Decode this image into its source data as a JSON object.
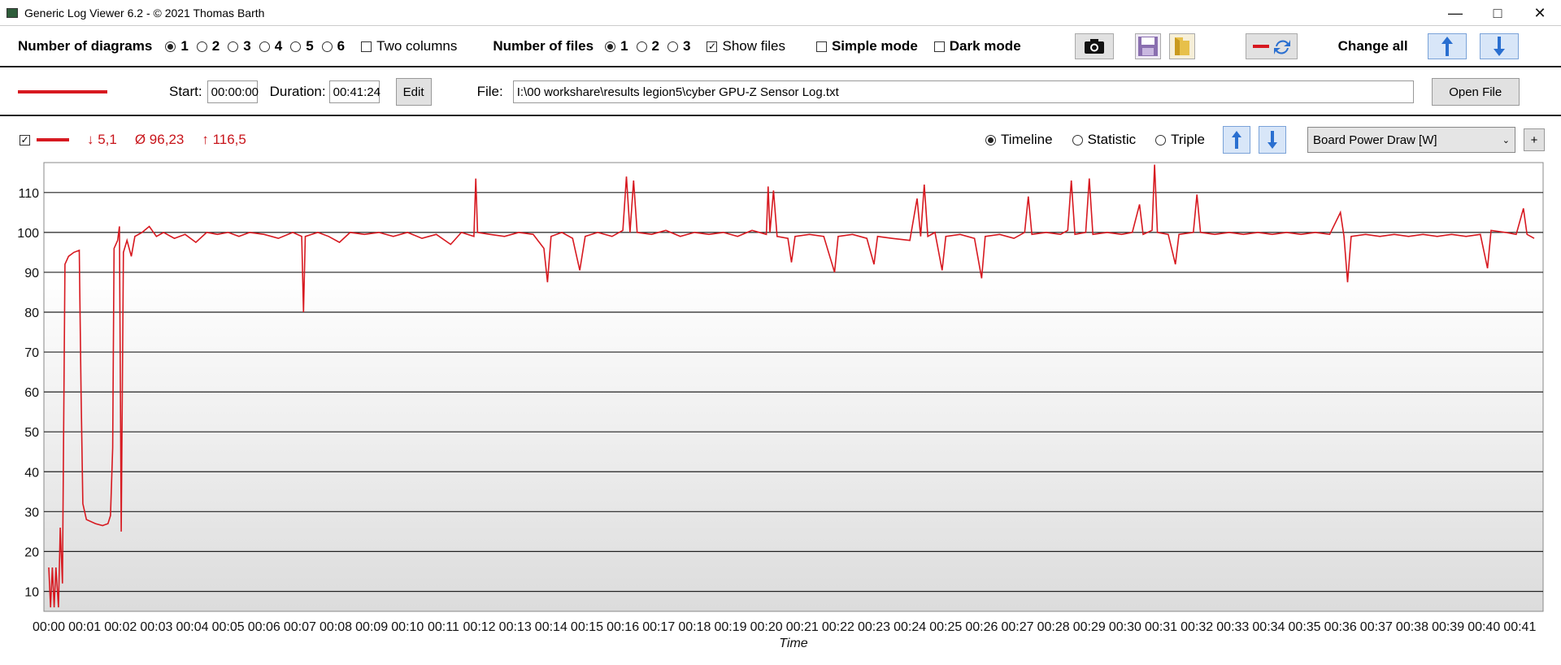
{
  "window": {
    "title": "Generic Log Viewer 6.2 - © 2021 Thomas Barth"
  },
  "toolbar": {
    "num_diagrams_label": "Number of diagrams",
    "diagram_options": [
      "1",
      "2",
      "3",
      "4",
      "5",
      "6"
    ],
    "diagram_selected": "1",
    "two_columns_label": "Two columns",
    "num_files_label": "Number of files",
    "file_options": [
      "1",
      "2",
      "3"
    ],
    "file_selected": "1",
    "show_files_label": "Show files",
    "simple_mode_label": "Simple mode",
    "dark_mode_label": "Dark mode",
    "change_all_label": "Change all"
  },
  "file_row": {
    "start_label": "Start:",
    "start_value": "00:00:00",
    "duration_label": "Duration:",
    "duration_value": "00:41:24",
    "edit_label": "Edit",
    "file_label": "File:",
    "file_path": "I:\\00 workshare\\results legion5\\cyber GPU-Z Sensor Log.txt",
    "open_file_label": "Open File"
  },
  "series_row": {
    "min_text": "↓ 5,1",
    "avg_text": "Ø 96,23",
    "max_text": "↑ 116,5",
    "view_options": [
      "Timeline",
      "Statistic",
      "Triple"
    ],
    "view_selected": "Timeline",
    "sensor_select": "Board Power Draw [W]",
    "add_label": "+"
  },
  "colors": {
    "series": "#d71920",
    "grid": "#222222"
  },
  "chart_data": {
    "type": "line",
    "xlabel": "Time",
    "ylabel": "",
    "x_ticks": [
      "00:00",
      "00:01",
      "00:02",
      "00:03",
      "00:04",
      "00:05",
      "00:06",
      "00:07",
      "00:08",
      "00:09",
      "00:10",
      "00:11",
      "00:12",
      "00:13",
      "00:14",
      "00:15",
      "00:16",
      "00:17",
      "00:18",
      "00:19",
      "00:20",
      "00:21",
      "00:22",
      "00:23",
      "00:24",
      "00:25",
      "00:26",
      "00:27",
      "00:28",
      "00:29",
      "00:30",
      "00:31",
      "00:32",
      "00:33",
      "00:34",
      "00:35",
      "00:36",
      "00:37",
      "00:38",
      "00:39",
      "00:40",
      "00:41"
    ],
    "y_ticks": [
      10,
      20,
      30,
      40,
      50,
      60,
      70,
      80,
      90,
      100,
      110
    ],
    "ylim": [
      5,
      117.5
    ],
    "xlim_minutes": [
      0,
      41.4
    ],
    "series": [
      {
        "name": "Board Power Draw [W]",
        "points": [
          [
            0.0,
            16
          ],
          [
            0.05,
            6
          ],
          [
            0.1,
            16
          ],
          [
            0.15,
            6
          ],
          [
            0.2,
            16
          ],
          [
            0.27,
            6
          ],
          [
            0.32,
            26
          ],
          [
            0.38,
            12
          ],
          [
            0.45,
            92
          ],
          [
            0.55,
            94
          ],
          [
            0.7,
            95
          ],
          [
            0.85,
            95.5
          ],
          [
            0.9,
            60
          ],
          [
            0.95,
            32
          ],
          [
            1.05,
            28
          ],
          [
            1.3,
            27
          ],
          [
            1.5,
            26.5
          ],
          [
            1.65,
            27
          ],
          [
            1.72,
            29
          ],
          [
            1.78,
            46
          ],
          [
            1.82,
            96
          ],
          [
            1.92,
            98
          ],
          [
            1.97,
            101.5
          ],
          [
            2.02,
            25
          ],
          [
            2.08,
            95
          ],
          [
            2.18,
            98
          ],
          [
            2.3,
            94
          ],
          [
            2.4,
            99
          ],
          [
            2.6,
            100
          ],
          [
            2.8,
            101.5
          ],
          [
            3.0,
            99
          ],
          [
            3.2,
            100
          ],
          [
            3.5,
            98.5
          ],
          [
            3.8,
            99.5
          ],
          [
            4.1,
            97.5
          ],
          [
            4.4,
            100
          ],
          [
            4.7,
            99.5
          ],
          [
            5.0,
            100
          ],
          [
            5.3,
            99
          ],
          [
            5.6,
            100
          ],
          [
            6.0,
            99.5
          ],
          [
            6.4,
            98.5
          ],
          [
            6.8,
            100
          ],
          [
            7.05,
            99
          ],
          [
            7.1,
            80
          ],
          [
            7.15,
            99
          ],
          [
            7.5,
            100
          ],
          [
            7.8,
            99
          ],
          [
            8.1,
            97.5
          ],
          [
            8.4,
            100
          ],
          [
            8.8,
            99.5
          ],
          [
            9.2,
            100
          ],
          [
            9.6,
            99
          ],
          [
            10.0,
            100
          ],
          [
            10.4,
            98.5
          ],
          [
            10.8,
            99.5
          ],
          [
            11.2,
            97
          ],
          [
            11.5,
            100
          ],
          [
            11.85,
            99
          ],
          [
            11.9,
            113.5
          ],
          [
            11.95,
            100
          ],
          [
            12.3,
            99.5
          ],
          [
            12.7,
            99
          ],
          [
            13.1,
            100
          ],
          [
            13.5,
            99.5
          ],
          [
            13.8,
            96
          ],
          [
            13.9,
            87.5
          ],
          [
            14.0,
            99
          ],
          [
            14.3,
            100
          ],
          [
            14.6,
            98.5
          ],
          [
            14.8,
            90.5
          ],
          [
            14.95,
            99
          ],
          [
            15.3,
            100
          ],
          [
            15.7,
            99
          ],
          [
            16.0,
            100.5
          ],
          [
            16.1,
            114
          ],
          [
            16.2,
            100
          ],
          [
            16.3,
            113
          ],
          [
            16.4,
            100
          ],
          [
            16.8,
            99.5
          ],
          [
            17.2,
            100.5
          ],
          [
            17.6,
            99
          ],
          [
            18.0,
            100
          ],
          [
            18.4,
            99.5
          ],
          [
            18.8,
            100
          ],
          [
            19.2,
            99
          ],
          [
            19.6,
            100.5
          ],
          [
            20.0,
            99.5
          ],
          [
            20.05,
            111.5
          ],
          [
            20.1,
            100
          ],
          [
            20.2,
            110.5
          ],
          [
            20.3,
            99
          ],
          [
            20.6,
            98.5
          ],
          [
            20.7,
            92.5
          ],
          [
            20.8,
            99
          ],
          [
            21.2,
            99.5
          ],
          [
            21.6,
            99
          ],
          [
            21.9,
            90
          ],
          [
            22.0,
            99
          ],
          [
            22.4,
            99.5
          ],
          [
            22.8,
            98.5
          ],
          [
            23.0,
            92
          ],
          [
            23.1,
            99
          ],
          [
            23.5,
            98.5
          ],
          [
            24.0,
            98
          ],
          [
            24.2,
            108.5
          ],
          [
            24.3,
            99
          ],
          [
            24.4,
            112
          ],
          [
            24.5,
            99
          ],
          [
            24.7,
            100
          ],
          [
            24.9,
            90.5
          ],
          [
            25.0,
            99
          ],
          [
            25.4,
            99.5
          ],
          [
            25.8,
            98.5
          ],
          [
            26.0,
            88.5
          ],
          [
            26.1,
            99
          ],
          [
            26.5,
            99.5
          ],
          [
            26.9,
            98.5
          ],
          [
            27.2,
            100
          ],
          [
            27.3,
            109
          ],
          [
            27.4,
            99.5
          ],
          [
            27.8,
            100
          ],
          [
            28.2,
            99.5
          ],
          [
            28.4,
            100.5
          ],
          [
            28.5,
            113
          ],
          [
            28.6,
            99.5
          ],
          [
            28.9,
            100
          ],
          [
            29.0,
            113.5
          ],
          [
            29.1,
            99.5
          ],
          [
            29.5,
            100
          ],
          [
            29.9,
            99.5
          ],
          [
            30.2,
            100
          ],
          [
            30.4,
            107
          ],
          [
            30.5,
            99.5
          ],
          [
            30.75,
            100.5
          ],
          [
            30.82,
            117
          ],
          [
            30.9,
            100
          ],
          [
            31.2,
            99.5
          ],
          [
            31.4,
            92
          ],
          [
            31.5,
            99.5
          ],
          [
            31.9,
            100
          ],
          [
            32.0,
            109.5
          ],
          [
            32.1,
            100
          ],
          [
            32.5,
            99.5
          ],
          [
            32.9,
            100
          ],
          [
            33.3,
            99.5
          ],
          [
            33.7,
            100
          ],
          [
            34.1,
            99.5
          ],
          [
            34.5,
            100
          ],
          [
            34.9,
            99.5
          ],
          [
            35.3,
            100
          ],
          [
            35.7,
            99.5
          ],
          [
            36.0,
            105
          ],
          [
            36.1,
            99
          ],
          [
            36.2,
            87.5
          ],
          [
            36.3,
            99
          ],
          [
            36.7,
            99.5
          ],
          [
            37.1,
            99
          ],
          [
            37.5,
            99.5
          ],
          [
            37.9,
            99
          ],
          [
            38.3,
            99.5
          ],
          [
            38.7,
            99
          ],
          [
            39.1,
            99.5
          ],
          [
            39.5,
            99
          ],
          [
            39.9,
            99.5
          ],
          [
            40.1,
            91
          ],
          [
            40.2,
            100.5
          ],
          [
            40.6,
            100
          ],
          [
            40.9,
            99.5
          ],
          [
            41.1,
            106
          ],
          [
            41.2,
            99.5
          ],
          [
            41.4,
            98.5
          ]
        ]
      }
    ]
  }
}
